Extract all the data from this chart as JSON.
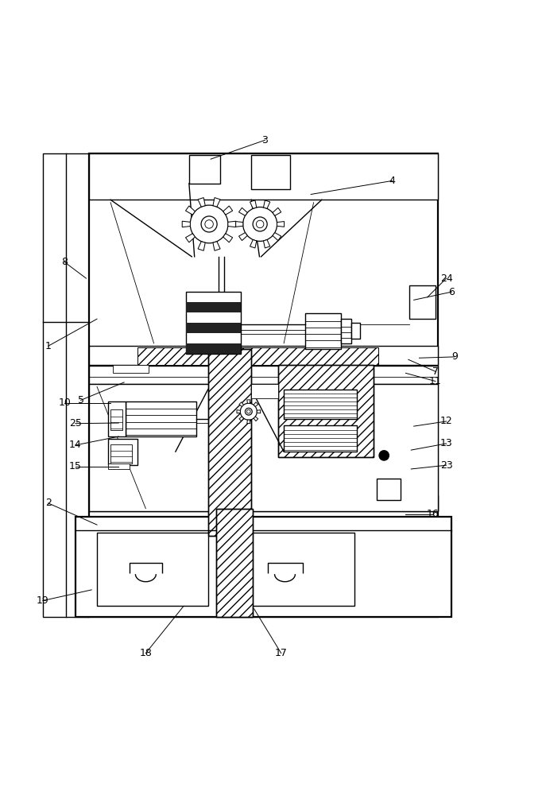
{
  "bg_color": "#ffffff",
  "line_color": "#000000",
  "fig_width": 6.87,
  "fig_height": 10.0,
  "lw": 1.0,
  "lw_thick": 1.6,
  "lw_thin": 0.6,
  "font_size": 9,
  "labels": {
    "1": [
      0.085,
      0.595,
      0.175,
      0.645
    ],
    "2": [
      0.085,
      0.305,
      0.175,
      0.265
    ],
    "3": [
      0.485,
      0.975,
      0.385,
      0.94
    ],
    "4": [
      0.72,
      0.9,
      0.57,
      0.875
    ],
    "5": [
      0.145,
      0.495,
      0.225,
      0.528
    ],
    "6": [
      0.83,
      0.695,
      0.76,
      0.68
    ],
    "7": [
      0.8,
      0.548,
      0.75,
      0.57
    ],
    "8": [
      0.115,
      0.75,
      0.155,
      0.72
    ],
    "9": [
      0.835,
      0.575,
      0.77,
      0.573
    ],
    "10": [
      0.115,
      0.49,
      0.2,
      0.49
    ],
    "11": [
      0.8,
      0.53,
      0.745,
      0.545
    ],
    "12": [
      0.82,
      0.456,
      0.76,
      0.447
    ],
    "13": [
      0.82,
      0.415,
      0.755,
      0.403
    ],
    "14": [
      0.135,
      0.412,
      0.215,
      0.428
    ],
    "15": [
      0.135,
      0.373,
      0.215,
      0.373
    ],
    "16": [
      0.795,
      0.285,
      0.745,
      0.285
    ],
    "17": [
      0.515,
      0.028,
      0.465,
      0.11
    ],
    "18": [
      0.265,
      0.028,
      0.335,
      0.115
    ],
    "19": [
      0.075,
      0.125,
      0.165,
      0.145
    ],
    "23": [
      0.82,
      0.375,
      0.755,
      0.368
    ],
    "24": [
      0.82,
      0.72,
      0.785,
      0.685
    ],
    "25": [
      0.135,
      0.452,
      0.215,
      0.453
    ]
  }
}
